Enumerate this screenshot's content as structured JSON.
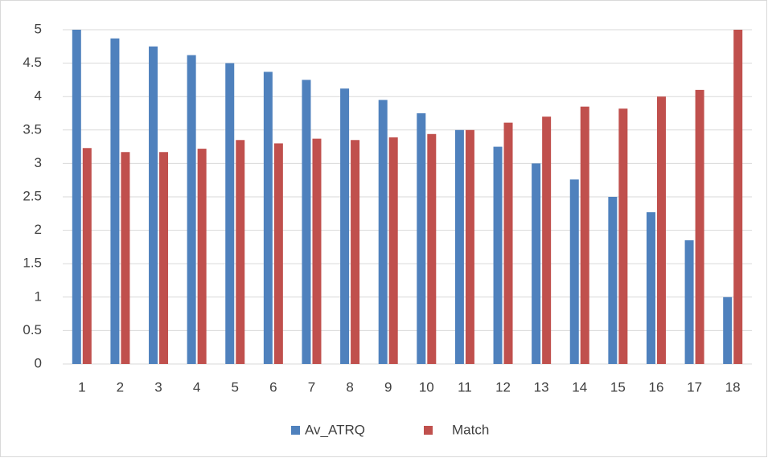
{
  "chart_data": {
    "type": "bar",
    "categories": [
      "1",
      "2",
      "3",
      "4",
      "5",
      "6",
      "7",
      "8",
      "9",
      "10",
      "11",
      "12",
      "13",
      "14",
      "15",
      "16",
      "17",
      "18"
    ],
    "series": [
      {
        "name": "Av_ATRQ",
        "color": "#4f81bd",
        "values": [
          5,
          4.87,
          4.75,
          4.62,
          4.5,
          4.37,
          4.25,
          4.12,
          3.95,
          3.75,
          3.5,
          3.25,
          3.0,
          2.76,
          2.5,
          2.27,
          1.85,
          1.0
        ]
      },
      {
        "name": "Match",
        "color": "#c0504d",
        "values": [
          3.23,
          3.17,
          3.17,
          3.22,
          3.35,
          3.3,
          3.37,
          3.35,
          3.39,
          3.44,
          3.5,
          3.61,
          3.7,
          3.85,
          3.82,
          4.0,
          4.1,
          5
        ]
      }
    ],
    "ylim": [
      0,
      5
    ],
    "yticks": [
      0,
      0.5,
      1,
      1.5,
      2,
      2.5,
      3,
      3.5,
      4,
      4.5,
      5
    ],
    "grid": true,
    "legend": "bottom"
  }
}
